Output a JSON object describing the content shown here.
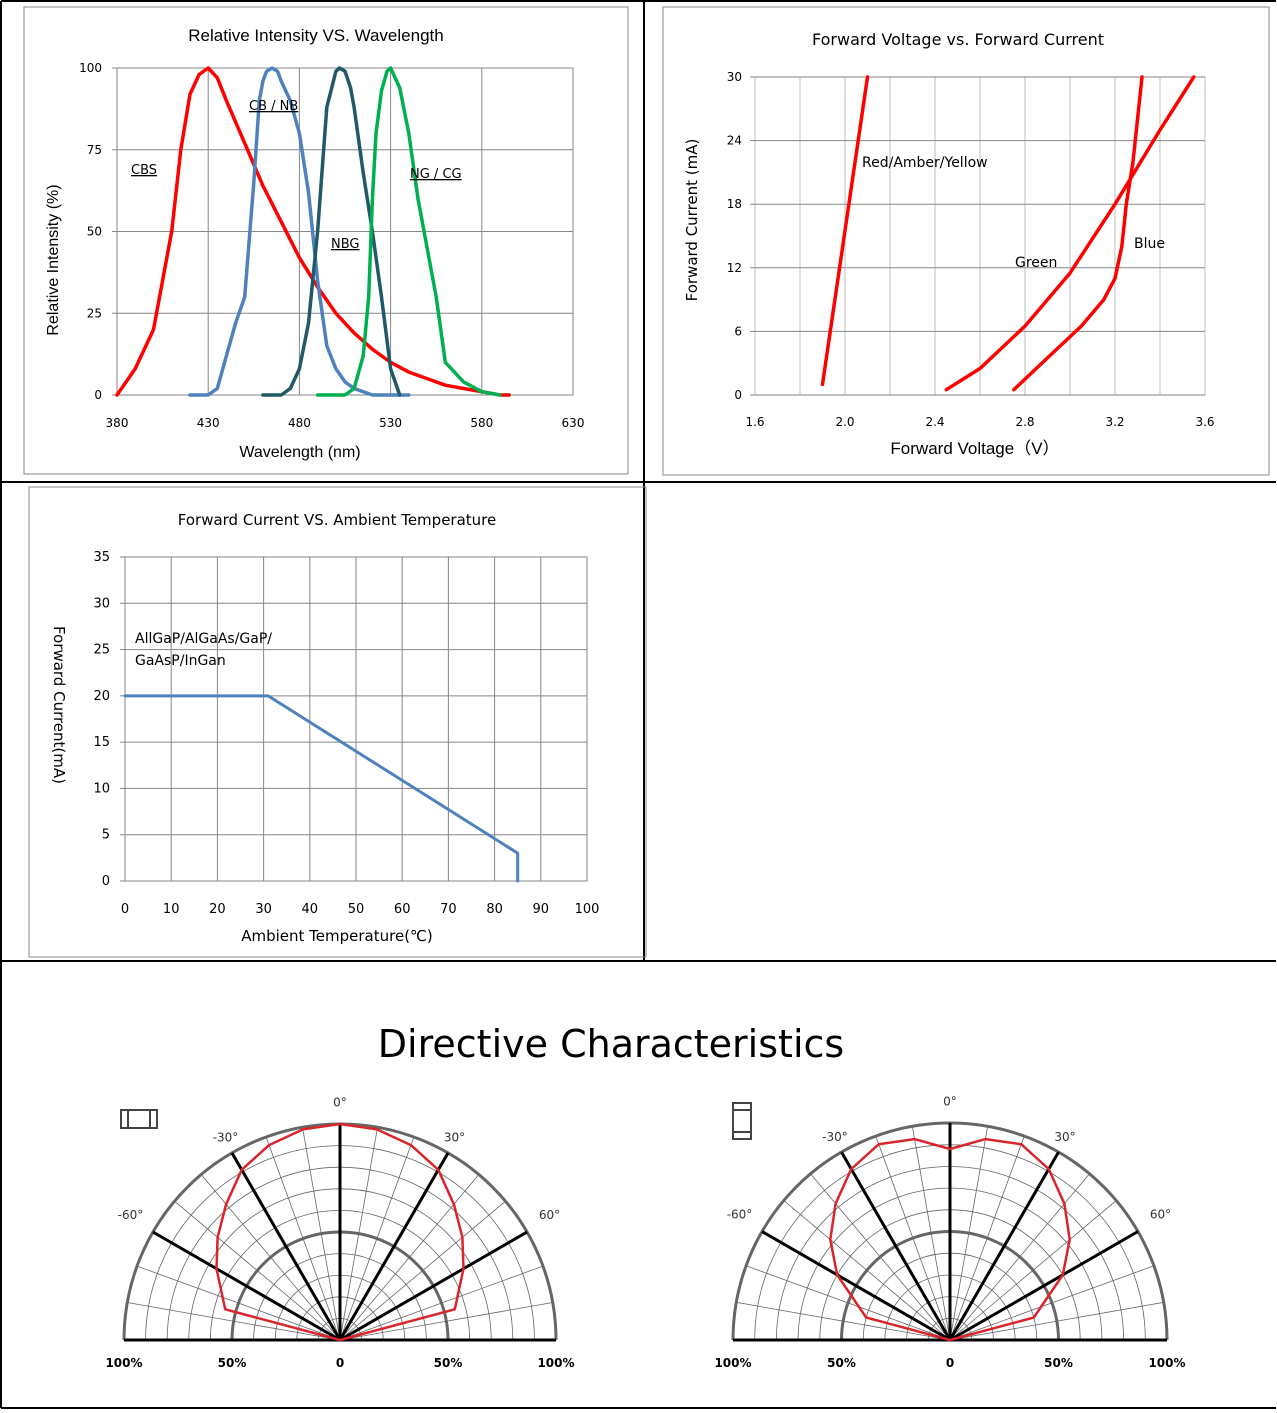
{
  "chart_data": [
    {
      "type": "line",
      "title": "Relative Intensity VS. Wavelength",
      "xlabel": "Wavelength (nm)",
      "ylabel": "Relative Intensity (%)",
      "xlim": [
        380,
        630
      ],
      "ylim": [
        0,
        100
      ],
      "xticks": [
        "380",
        "430",
        "480",
        "530",
        "580",
        "630"
      ],
      "yticks": [
        "0",
        "25",
        "50",
        "75",
        "100"
      ],
      "grid": true,
      "colors": {
        "red": "#ff0000",
        "blue": "#4f81bd",
        "teal": "#215968",
        "green": "#00b050"
      },
      "series": [
        {
          "name": "CBS",
          "color": "#ff0000",
          "x": [
            380,
            390,
            400,
            410,
            415,
            420,
            425,
            430,
            435,
            440,
            450,
            460,
            470,
            480,
            490,
            500,
            510,
            520,
            530,
            540,
            550,
            560,
            570,
            580,
            590,
            595
          ],
          "y": [
            0,
            8,
            20,
            50,
            75,
            92,
            98,
            100,
            97,
            90,
            77,
            64,
            53,
            42,
            33,
            25,
            19,
            14,
            10,
            7,
            5,
            3,
            2,
            1,
            0,
            0
          ]
        },
        {
          "name": "CB / NB",
          "color": "#4f81bd",
          "x": [
            420,
            425,
            430,
            435,
            440,
            445,
            450,
            455,
            458,
            460,
            462,
            465,
            468,
            470,
            475,
            480,
            485,
            490,
            495,
            500,
            505,
            510,
            520,
            530,
            540
          ],
          "y": [
            0,
            0,
            0,
            2,
            12,
            22,
            30,
            65,
            90,
            96,
            99,
            100,
            99,
            96,
            90,
            80,
            62,
            35,
            15,
            8,
            4,
            2,
            0,
            0,
            0
          ]
        },
        {
          "name": "NBG",
          "color": "#215968",
          "x": [
            460,
            465,
            470,
            475,
            480,
            485,
            490,
            495,
            500,
            502,
            505,
            508,
            510,
            515,
            520,
            525,
            530,
            535
          ],
          "y": [
            0,
            0,
            0,
            2,
            8,
            22,
            50,
            88,
            99,
            100,
            99,
            94,
            88,
            68,
            50,
            30,
            8,
            0
          ]
        },
        {
          "name": "NG / CG",
          "color": "#00b050",
          "x": [
            490,
            495,
            500,
            505,
            510,
            515,
            518,
            520,
            522,
            525,
            528,
            530,
            535,
            540,
            545,
            550,
            555,
            560,
            570,
            580,
            590
          ],
          "y": [
            0,
            0,
            0,
            0,
            2,
            12,
            30,
            60,
            80,
            93,
            99,
            100,
            94,
            80,
            60,
            45,
            30,
            10,
            4,
            1,
            0
          ]
        }
      ]
    },
    {
      "type": "line",
      "title": "Forward Voltage vs. Forward Current",
      "xlabel": "Forward Voltage（V）",
      "ylabel": "Forward Current (mA)",
      "xlim": [
        1.6,
        3.6
      ],
      "ylim": [
        0,
        30
      ],
      "xticks": [
        "1.6",
        "2.0",
        "2.4",
        "2.8",
        "3.2",
        "3.6"
      ],
      "yticks": [
        "0",
        "6",
        "12",
        "18",
        "24",
        "30"
      ],
      "grid": true,
      "series": [
        {
          "name": "Red/Amber/Yellow",
          "color": "#ff0000",
          "x": [
            1.9,
            2.1
          ],
          "y": [
            1,
            30
          ]
        },
        {
          "name": "Green",
          "color": "#ff0000",
          "x": [
            2.45,
            2.6,
            2.8,
            3.0,
            3.2,
            3.4,
            3.55
          ],
          "y": [
            0.5,
            2.5,
            6.5,
            11.5,
            18,
            25,
            30
          ]
        },
        {
          "name": "Blue",
          "color": "#ff0000",
          "x": [
            2.75,
            2.9,
            3.05,
            3.15,
            3.2,
            3.23,
            3.25,
            3.28,
            3.3,
            3.32
          ],
          "y": [
            0.5,
            3.5,
            6.5,
            9,
            11,
            14,
            18,
            22,
            26,
            30
          ]
        }
      ]
    },
    {
      "type": "line",
      "title": "Forward Current VS. Ambient Temperature",
      "xlabel": "Ambient Temperature(℃)",
      "ylabel": "Forward  Current(mA)",
      "xlim": [
        0,
        100
      ],
      "ylim": [
        0,
        35
      ],
      "xticks": [
        "0",
        "10",
        "20",
        "30",
        "40",
        "50",
        "60",
        "70",
        "80",
        "90",
        "100"
      ],
      "yticks": [
        "0",
        "5",
        "10",
        "15",
        "20",
        "25",
        "30",
        "35"
      ],
      "grid": true,
      "annotation_lines": [
        "AllGaP/AlGaAs/GaP/",
        "GaAsP/InGan"
      ],
      "series": [
        {
          "color": "#4f81bd",
          "x": [
            0,
            31,
            85,
            85
          ],
          "y": [
            20,
            20,
            3,
            0
          ]
        }
      ]
    }
  ],
  "directive": {
    "title": "Directive Characteristics",
    "angle_labels": {
      "zero": "0°",
      "m30": "-30°",
      "p30": "30°",
      "m60": "-60°",
      "p60": "60°"
    },
    "axis_labels": [
      "100%",
      "50%",
      "0",
      "50%",
      "100%"
    ],
    "patterns": [
      {
        "radii_pct": [
          55,
          66,
          74,
          82,
          91,
          96,
          99,
          100,
          99,
          96,
          91,
          82,
          74,
          66,
          55
        ],
        "angles_deg": [
          -75,
          -60,
          -50,
          -40,
          -30,
          -20,
          -10,
          0,
          10,
          20,
          30,
          40,
          50,
          60,
          75
        ],
        "color": "#d9252b"
      },
      {
        "radii_pct": [
          40,
          60,
          72,
          82,
          91,
          96,
          94,
          88,
          94,
          96,
          91,
          82,
          72,
          60,
          40
        ],
        "angles_deg": [
          -75,
          -60,
          -50,
          -40,
          -30,
          -20,
          -10,
          0,
          10,
          20,
          30,
          40,
          50,
          60,
          75
        ],
        "color": "#d9252b"
      }
    ]
  }
}
